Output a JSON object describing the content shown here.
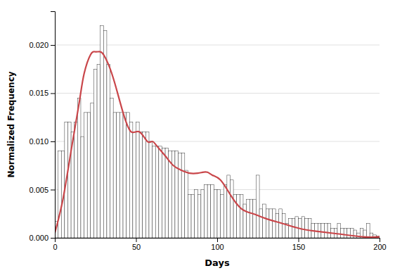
{
  "chart_data": {
    "type": "histogram",
    "xlabel": "Days",
    "ylabel": "Normalized Frequency",
    "xlim": [
      0,
      200
    ],
    "ylim": [
      0,
      0.0235
    ],
    "xticks": [
      0,
      50,
      100,
      150,
      200
    ],
    "yticks": [
      {
        "value": 0.0,
        "label": "0.000"
      },
      {
        "value": 0.005,
        "label": "0.005"
      },
      {
        "value": 0.01,
        "label": "0.010"
      },
      {
        "value": 0.015,
        "label": "0.015"
      },
      {
        "value": 0.02,
        "label": "0.020"
      }
    ],
    "grid": "y",
    "series": [
      {
        "type": "bar",
        "color": "white",
        "bins": [
          0,
          2,
          4,
          6,
          8,
          10,
          12,
          14,
          16,
          18,
          20,
          22,
          24,
          26,
          28,
          30,
          32,
          34,
          36,
          38,
          40,
          42,
          44,
          46,
          48,
          50,
          52,
          54,
          56,
          58,
          60,
          62,
          64,
          66,
          68,
          70,
          72,
          74,
          76,
          78,
          80,
          82,
          84,
          86,
          88,
          90,
          92,
          94,
          96,
          98,
          100,
          102,
          104,
          106,
          108,
          110,
          112,
          114,
          116,
          118,
          120,
          122,
          124,
          126,
          128,
          130,
          132,
          134,
          136,
          138,
          140,
          142,
          144,
          146,
          148,
          150,
          152,
          154,
          156,
          158,
          160,
          162,
          164,
          166,
          168,
          170,
          172,
          174,
          176,
          178,
          180,
          182,
          184,
          186,
          188,
          190,
          192,
          194,
          196,
          198,
          200
        ],
        "values": [
          0.0017,
          0.009,
          0.009,
          0.012,
          0.012,
          0.011,
          0.012,
          0.0145,
          0.0105,
          0.013,
          0.013,
          0.014,
          0.0175,
          0.018,
          0.022,
          0.0215,
          0.018,
          0.0145,
          0.013,
          0.013,
          0.013,
          0.013,
          0.013,
          0.012,
          0.011,
          0.012,
          0.011,
          0.011,
          0.011,
          0.01,
          0.0095,
          0.0095,
          0.0095,
          0.0093,
          0.0093,
          0.009,
          0.009,
          0.009,
          0.0088,
          0.0088,
          0.007,
          0.0045,
          0.0045,
          0.005,
          0.0045,
          0.005,
          0.0055,
          0.0055,
          0.0055,
          0.005,
          0.005,
          0.0045,
          0.0055,
          0.0065,
          0.006,
          0.0045,
          0.0045,
          0.0045,
          0.0035,
          0.004,
          0.004,
          0.004,
          0.0065,
          0.003,
          0.0035,
          0.003,
          0.003,
          0.003,
          0.0025,
          0.003,
          0.0025,
          0.0015,
          0.002,
          0.002,
          0.0022,
          0.002,
          0.0022,
          0.002,
          0.002,
          0.0015,
          0.0015,
          0.0015,
          0.0015,
          0.0015,
          0.0015,
          0.001,
          0.001,
          0.0015,
          0.001,
          0.001,
          0.001,
          0.001,
          0.0008,
          0.0005,
          0.001,
          0.0008,
          0.0015,
          0.0005,
          0.0003,
          0.0002
        ]
      },
      {
        "type": "line",
        "color": "#c9464a",
        "x": [
          0,
          5,
          10,
          15,
          18,
          22,
          25,
          28,
          30,
          33,
          37,
          42,
          47,
          52,
          57,
          60,
          63,
          68,
          73,
          78,
          83,
          88,
          91,
          94,
          97,
          102,
          108,
          115,
          122,
          130,
          140,
          150,
          160,
          175,
          190,
          200
        ],
        "values": [
          0.0005,
          0.004,
          0.009,
          0.014,
          0.017,
          0.019,
          0.0193,
          0.0193,
          0.019,
          0.018,
          0.016,
          0.013,
          0.011,
          0.011,
          0.01,
          0.01,
          0.0095,
          0.0085,
          0.0075,
          0.007,
          0.0067,
          0.0067,
          0.0068,
          0.0068,
          0.0065,
          0.006,
          0.0045,
          0.003,
          0.0025,
          0.002,
          0.0015,
          0.001,
          0.0007,
          0.0004,
          0.0001,
          0.0001
        ]
      }
    ]
  }
}
